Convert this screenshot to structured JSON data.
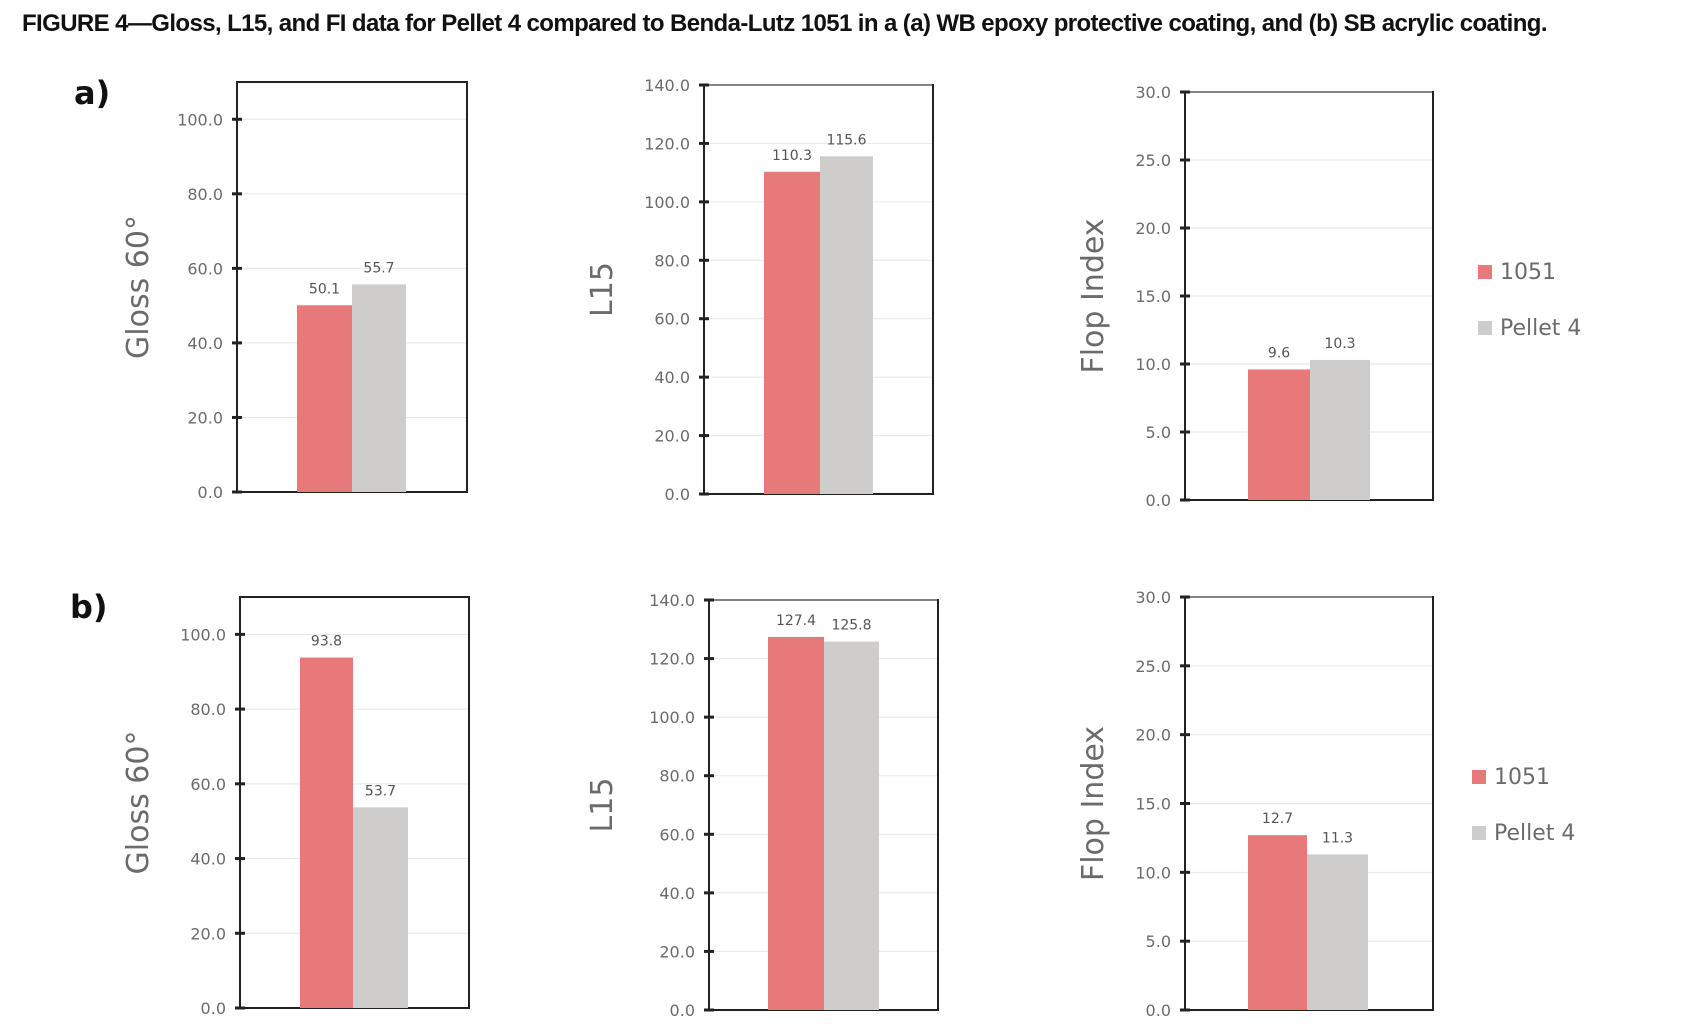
{
  "figure_title": "FIGURE 4—Gloss, L15, and FI data for Pellet 4 compared to Benda-Lutz 1051 in a (a) WB epoxy protective coating, and (b) SB acrylic coating.",
  "colors": {
    "series_1051": "#e8797b",
    "series_pellet4": "#cfcccc",
    "axis": "#222222",
    "grid": "#e6e6e6",
    "text": "#6b6b6b"
  },
  "legends": [
    {
      "panel": "a",
      "items": [
        {
          "label": "1051",
          "color": "#e8797b"
        },
        {
          "label": "Pellet 4",
          "color": "#cfcccc"
        }
      ]
    },
    {
      "panel": "b",
      "items": [
        {
          "label": "1051",
          "color": "#e8797b"
        },
        {
          "label": "Pellet 4",
          "color": "#cfcccc"
        }
      ]
    }
  ],
  "chart_data": [
    {
      "panel": "a)",
      "type": "bar",
      "ylabel": "Gloss 60°",
      "ylim": [
        0,
        110
      ],
      "ticks": [
        0,
        20,
        40,
        60,
        80,
        100
      ],
      "tick_labels": [
        "0.0",
        "20.0",
        "40.0",
        "60.0",
        "80.0",
        "100.0"
      ],
      "grid": true,
      "series": [
        {
          "name": "1051",
          "value": 50.1,
          "label": "50.1",
          "color": "#e8797b"
        },
        {
          "name": "Pellet 4",
          "value": 55.7,
          "label": "55.7",
          "color": "#cfcccc"
        }
      ]
    },
    {
      "panel": "",
      "type": "bar",
      "ylabel": "L15",
      "ylim": [
        0,
        140
      ],
      "ticks": [
        0,
        20,
        40,
        60,
        80,
        100,
        120,
        140
      ],
      "tick_labels": [
        "0.0",
        "20.0",
        "40.0",
        "60.0",
        "80.0",
        "100.0",
        "120.0",
        "140.0"
      ],
      "grid": true,
      "series": [
        {
          "name": "1051",
          "value": 110.3,
          "label": "110.3",
          "color": "#e8797b"
        },
        {
          "name": "Pellet 4",
          "value": 115.6,
          "label": "115.6",
          "color": "#cfcccc"
        }
      ]
    },
    {
      "panel": "",
      "type": "bar",
      "ylabel": "Flop Index",
      "ylim": [
        0,
        30
      ],
      "ticks": [
        0,
        5,
        10,
        15,
        20,
        25,
        30
      ],
      "tick_labels": [
        "0.0",
        "5.0",
        "10.0",
        "15.0",
        "20.0",
        "25.0",
        "30.0"
      ],
      "grid": true,
      "series": [
        {
          "name": "1051",
          "value": 9.6,
          "label": "9.6",
          "color": "#e8797b"
        },
        {
          "name": "Pellet 4",
          "value": 10.3,
          "label": "10.3",
          "color": "#cfcccc"
        }
      ]
    },
    {
      "panel": "b)",
      "type": "bar",
      "ylabel": "Gloss 60°",
      "ylim": [
        0,
        110
      ],
      "ticks": [
        0,
        20,
        40,
        60,
        80,
        100
      ],
      "tick_labels": [
        "0.0",
        "20.0",
        "40.0",
        "60.0",
        "80.0",
        "100.0"
      ],
      "grid": true,
      "series": [
        {
          "name": "1051",
          "value": 93.8,
          "label": "93.8",
          "color": "#e8797b"
        },
        {
          "name": "Pellet 4",
          "value": 53.7,
          "label": "53.7",
          "color": "#cfcccc"
        }
      ]
    },
    {
      "panel": "",
      "type": "bar",
      "ylabel": "L15",
      "ylim": [
        0,
        140
      ],
      "ticks": [
        0,
        20,
        40,
        60,
        80,
        100,
        120,
        140
      ],
      "tick_labels": [
        "0.0",
        "20.0",
        "40.0",
        "60.0",
        "80.0",
        "100.0",
        "120.0",
        "140.0"
      ],
      "grid": true,
      "series": [
        {
          "name": "1051",
          "value": 127.4,
          "label": "127.4",
          "color": "#e8797b"
        },
        {
          "name": "Pellet 4",
          "value": 125.8,
          "label": "125.8",
          "color": "#cfcccc"
        }
      ]
    },
    {
      "panel": "",
      "type": "bar",
      "ylabel": "Flop Index",
      "ylim": [
        0,
        30
      ],
      "ticks": [
        0,
        5,
        10,
        15,
        20,
        25,
        30
      ],
      "tick_labels": [
        "0.0",
        "5.0",
        "10.0",
        "15.0",
        "20.0",
        "25.0",
        "30.0"
      ],
      "grid": true,
      "series": [
        {
          "name": "1051",
          "value": 12.7,
          "label": "12.7",
          "color": "#e8797b"
        },
        {
          "name": "Pellet 4",
          "value": 11.3,
          "label": "11.3",
          "color": "#cfcccc"
        }
      ]
    }
  ]
}
